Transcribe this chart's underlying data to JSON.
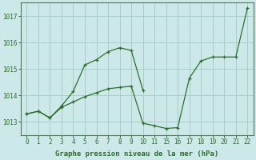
{
  "background_color": "#cce8e8",
  "grid_color": "#aacccc",
  "line_color": "#2d6e2d",
  "marker_color": "#2d6e2d",
  "xlabels": [
    "0",
    "1",
    "2",
    "3",
    "4",
    "5",
    "6",
    "7",
    "8",
    "9",
    "10",
    "11",
    "15",
    "16",
    "17",
    "18",
    "19",
    "20",
    "21",
    "22"
  ],
  "series1_y": [
    1013.3,
    1013.4,
    1013.15,
    1013.55,
    1013.75,
    1013.95,
    1014.1,
    1014.25,
    1014.3,
    1014.35,
    1012.95,
    1012.85,
    1012.75,
    1012.78,
    1014.65,
    1015.3,
    1015.45,
    1015.45,
    1015.45,
    1017.3
  ],
  "series2_y": [
    1013.3,
    1013.4,
    1013.15,
    1013.6,
    1014.15,
    1015.15,
    1015.35,
    1015.65,
    1015.8,
    1015.7,
    1014.2,
    null,
    null,
    null,
    null,
    null,
    null,
    null,
    null,
    null
  ],
  "ylim": [
    1012.5,
    1017.5
  ],
  "yticks": [
    1013,
    1014,
    1015,
    1016,
    1017
  ],
  "xlabel": "Graphe pression niveau de la mer (hPa)"
}
